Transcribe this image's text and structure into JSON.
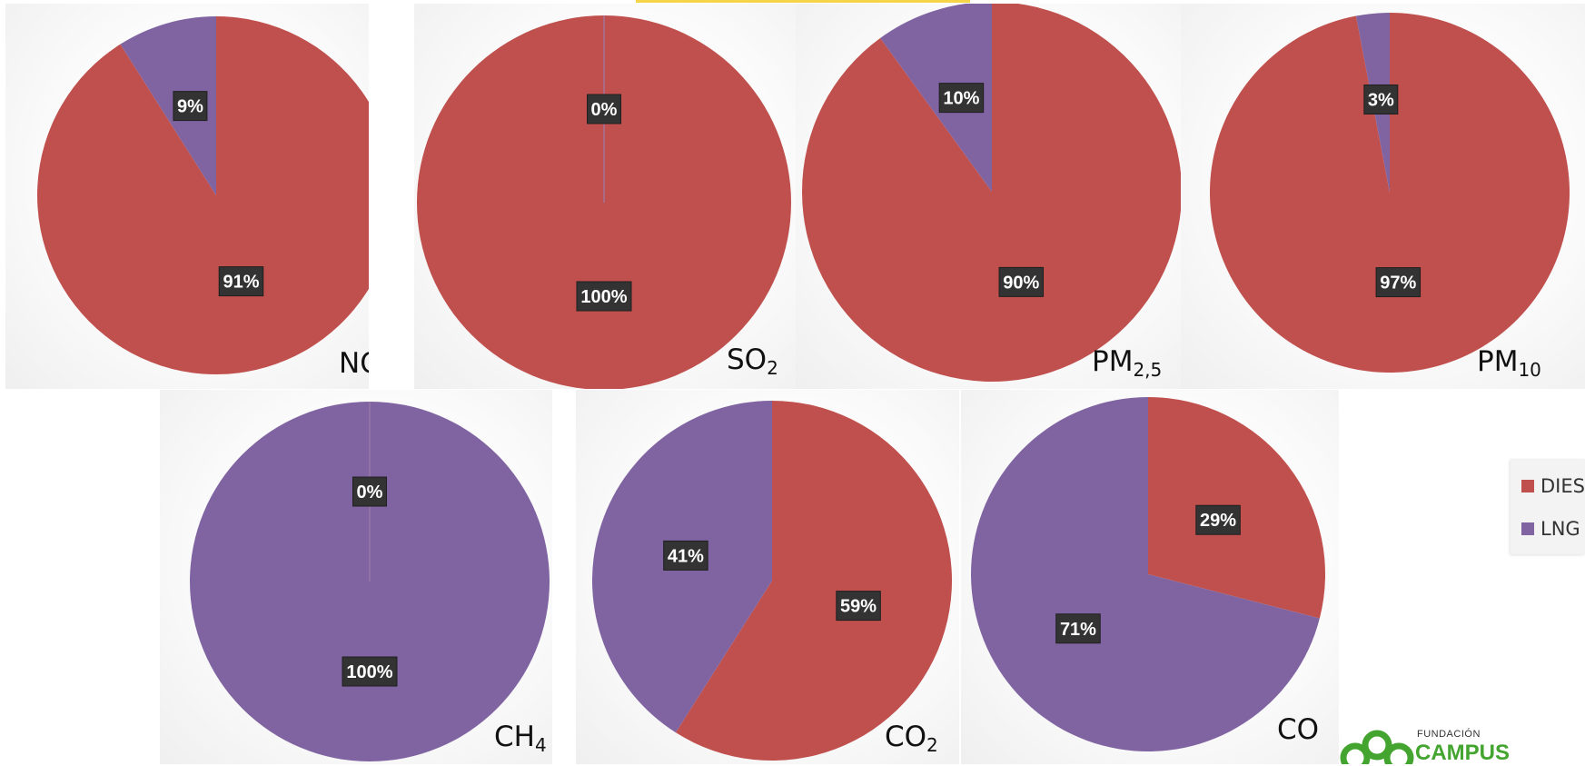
{
  "colors": {
    "diesel": "#c0504d",
    "lng": "#8064a2",
    "logo_green": "#43a52f"
  },
  "legend": {
    "items": [
      {
        "label": "DIES",
        "color": "#c0504d"
      },
      {
        "label": "LNG",
        "color": "#8064a2"
      }
    ]
  },
  "logo": {
    "small_text": "FUNDACIÓN",
    "big_text": "CAMPUS"
  },
  "chart_data": [
    {
      "type": "pie",
      "title": "NOx",
      "label_main": "NO",
      "label_sub": "x",
      "slices": [
        {
          "series": "DIES",
          "value": 91,
          "label": "91%"
        },
        {
          "series": "LNG",
          "value": 9,
          "label": "9%"
        }
      ]
    },
    {
      "type": "pie",
      "title": "SO2",
      "label_main": "SO",
      "label_sub": "2",
      "slices": [
        {
          "series": "DIES",
          "value": 100,
          "label": "100%"
        },
        {
          "series": "LNG",
          "value": 0,
          "label": "0%"
        }
      ]
    },
    {
      "type": "pie",
      "title": "PM2,5",
      "label_main": "PM",
      "label_sub": "2,5",
      "slices": [
        {
          "series": "DIES",
          "value": 90,
          "label": "90%"
        },
        {
          "series": "LNG",
          "value": 10,
          "label": "10%"
        }
      ]
    },
    {
      "type": "pie",
      "title": "PM10",
      "label_main": "PM",
      "label_sub": "10",
      "slices": [
        {
          "series": "DIES",
          "value": 97,
          "label": "97%"
        },
        {
          "series": "LNG",
          "value": 3,
          "label": "3%"
        }
      ]
    },
    {
      "type": "pie",
      "title": "CH4",
      "label_main": "CH",
      "label_sub": "4",
      "slices": [
        {
          "series": "DIES",
          "value": 0,
          "label": "0%"
        },
        {
          "series": "LNG",
          "value": 100,
          "label": "100%"
        }
      ]
    },
    {
      "type": "pie",
      "title": "CO2",
      "label_main": "CO",
      "label_sub": "2",
      "slices": [
        {
          "series": "DIES",
          "value": 59,
          "label": "59%"
        },
        {
          "series": "LNG",
          "value": 41,
          "label": "41%"
        }
      ]
    },
    {
      "type": "pie",
      "title": "CO",
      "label_main": "CO",
      "label_sub": "",
      "slices": [
        {
          "series": "DIES",
          "value": 29,
          "label": "29%"
        },
        {
          "series": "LNG",
          "value": 71,
          "label": "71%"
        }
      ]
    }
  ]
}
